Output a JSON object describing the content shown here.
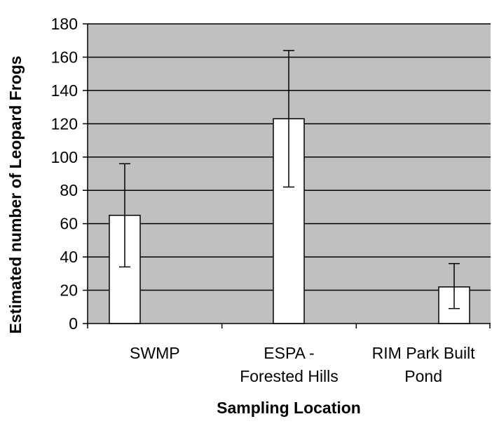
{
  "chart_data": {
    "type": "bar",
    "title": "",
    "xlabel": "Sampling Location",
    "ylabel": "Estimated number of Leopard Frogs",
    "ylim": [
      0,
      180
    ],
    "yticks": [
      0,
      20,
      40,
      60,
      80,
      100,
      120,
      140,
      160,
      180
    ],
    "ytick_labels": [
      "0",
      "20",
      "40",
      "60",
      "80",
      "100",
      "120",
      "140",
      "160",
      "180"
    ],
    "categories": [
      [
        "SWMP"
      ],
      [
        "ESPA -",
        "Forested Hills"
      ],
      [
        "RIM Park Built",
        "Pond"
      ]
    ],
    "values": [
      65,
      123,
      22
    ],
    "error_low": [
      34,
      82,
      9
    ],
    "error_high": [
      96,
      164,
      36
    ],
    "grid": true,
    "legend": "none",
    "colors": {
      "plot_background": "#c0c0c0",
      "bar_fill": "#ffffff",
      "bar_stroke": "#000000",
      "gridline": "#000000"
    }
  }
}
